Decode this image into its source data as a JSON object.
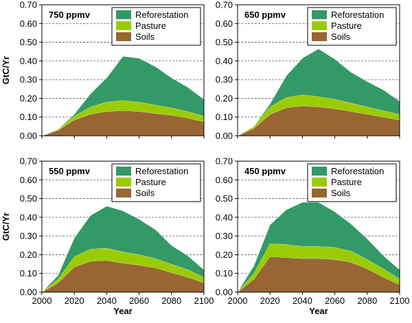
{
  "chart_data": [
    {
      "type": "area",
      "title": "750 ppmv",
      "xlabel": "",
      "ylabel": "GtC/Yr",
      "xlim": [
        2000,
        2100
      ],
      "ylim": [
        0,
        0.7
      ],
      "stacked": true,
      "x": [
        2000,
        2010,
        2020,
        2030,
        2040,
        2050,
        2060,
        2070,
        2080,
        2090,
        2100
      ],
      "series": [
        {
          "name": "Soils",
          "values": [
            0.0,
            0.03,
            0.085,
            0.115,
            0.13,
            0.135,
            0.13,
            0.12,
            0.11,
            0.095,
            0.075
          ]
        },
        {
          "name": "Pasture",
          "values": [
            0.0,
            0.005,
            0.02,
            0.04,
            0.05,
            0.055,
            0.05,
            0.045,
            0.04,
            0.035,
            0.03
          ]
        },
        {
          "name": "Reforestation",
          "values": [
            0.0,
            0.0,
            0.01,
            0.07,
            0.13,
            0.235,
            0.235,
            0.205,
            0.16,
            0.13,
            0.09
          ]
        }
      ],
      "legend_position": "top-right",
      "grid": "horizontal dashed"
    },
    {
      "type": "area",
      "title": "650 ppmv",
      "xlabel": "",
      "ylabel": "",
      "xlim": [
        2000,
        2100
      ],
      "ylim": [
        0,
        0.7
      ],
      "stacked": true,
      "x": [
        2000,
        2010,
        2020,
        2030,
        2040,
        2050,
        2060,
        2070,
        2080,
        2090,
        2100
      ],
      "series": [
        {
          "name": "Soils",
          "values": [
            0.0,
            0.04,
            0.115,
            0.15,
            0.16,
            0.155,
            0.145,
            0.13,
            0.115,
            0.1,
            0.085
          ]
        },
        {
          "name": "Pasture",
          "values": [
            0.0,
            0.01,
            0.04,
            0.055,
            0.06,
            0.055,
            0.05,
            0.045,
            0.04,
            0.035,
            0.03
          ]
        },
        {
          "name": "Reforestation",
          "values": [
            0.0,
            0.0,
            0.015,
            0.115,
            0.195,
            0.255,
            0.215,
            0.165,
            0.135,
            0.11,
            0.07
          ]
        }
      ],
      "legend_position": "top-right",
      "grid": "horizontal dashed"
    },
    {
      "type": "area",
      "title": "550 ppmv",
      "xlabel": "Year",
      "ylabel": "GtC/Yr",
      "xlim": [
        2000,
        2100
      ],
      "ylim": [
        0,
        0.7
      ],
      "stacked": true,
      "x": [
        2000,
        2010,
        2020,
        2030,
        2040,
        2050,
        2060,
        2070,
        2080,
        2090,
        2100
      ],
      "series": [
        {
          "name": "Soils",
          "values": [
            0.0,
            0.05,
            0.135,
            0.165,
            0.17,
            0.155,
            0.145,
            0.13,
            0.105,
            0.08,
            0.05
          ]
        },
        {
          "name": "Pasture",
          "values": [
            0.0,
            0.02,
            0.055,
            0.065,
            0.065,
            0.06,
            0.055,
            0.05,
            0.045,
            0.04,
            0.03
          ]
        },
        {
          "name": "Reforestation",
          "values": [
            0.0,
            0.02,
            0.1,
            0.18,
            0.225,
            0.22,
            0.19,
            0.155,
            0.1,
            0.075,
            0.04
          ]
        }
      ],
      "legend_position": "top-right",
      "grid": "horizontal dashed"
    },
    {
      "type": "area",
      "title": "450 ppmv",
      "xlabel": "Year",
      "ylabel": "",
      "xlim": [
        2000,
        2100
      ],
      "ylim": [
        0,
        0.7
      ],
      "stacked": true,
      "x": [
        2000,
        2010,
        2020,
        2030,
        2040,
        2050,
        2060,
        2070,
        2080,
        2090,
        2100
      ],
      "series": [
        {
          "name": "Soils",
          "values": [
            0.0,
            0.07,
            0.19,
            0.185,
            0.18,
            0.18,
            0.175,
            0.16,
            0.125,
            0.08,
            0.04
          ]
        },
        {
          "name": "Pasture",
          "values": [
            0.0,
            0.03,
            0.07,
            0.07,
            0.065,
            0.065,
            0.065,
            0.06,
            0.05,
            0.045,
            0.03
          ]
        },
        {
          "name": "Reforestation",
          "values": [
            0.0,
            0.04,
            0.1,
            0.185,
            0.235,
            0.235,
            0.19,
            0.145,
            0.11,
            0.07,
            0.05
          ]
        }
      ],
      "legend_position": "top-right",
      "grid": "horizontal dashed"
    }
  ],
  "colors": {
    "Reforestation": "#339966",
    "Pasture": "#99cc00",
    "Soils": "#996633"
  },
  "y_ticks": [
    "0.00",
    "0.10",
    "0.20",
    "0.30",
    "0.40",
    "0.50",
    "0.60",
    "0.70"
  ],
  "x_ticks": [
    "2000",
    "2020",
    "2040",
    "2060",
    "2080",
    "2100"
  ]
}
